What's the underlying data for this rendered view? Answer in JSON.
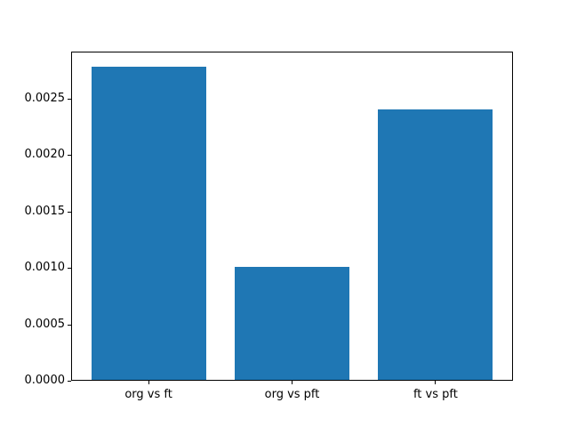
{
  "chart_data": {
    "type": "bar",
    "title": "",
    "xlabel": "",
    "ylabel": "",
    "categories": [
      "org vs ft",
      "org vs pft",
      "ft vs pft"
    ],
    "values": [
      0.00278,
      0.00101,
      0.0024
    ],
    "bar_color": "#1f77b4",
    "background_color": "#ffffff",
    "spine_color": "#000000",
    "grid": false,
    "legend": null,
    "xlim": [
      -0.54,
      2.54
    ],
    "ylim": [
      0,
      0.002915
    ],
    "bar_width_data": 0.8,
    "yticks": [
      {
        "value": 0.0,
        "label": "0.0000"
      },
      {
        "value": 0.0005,
        "label": "0.0005"
      },
      {
        "value": 0.001,
        "label": "0.0010"
      },
      {
        "value": 0.0015,
        "label": "0.0015"
      },
      {
        "value": 0.002,
        "label": "0.0020"
      },
      {
        "value": 0.0025,
        "label": "0.0025"
      }
    ]
  }
}
